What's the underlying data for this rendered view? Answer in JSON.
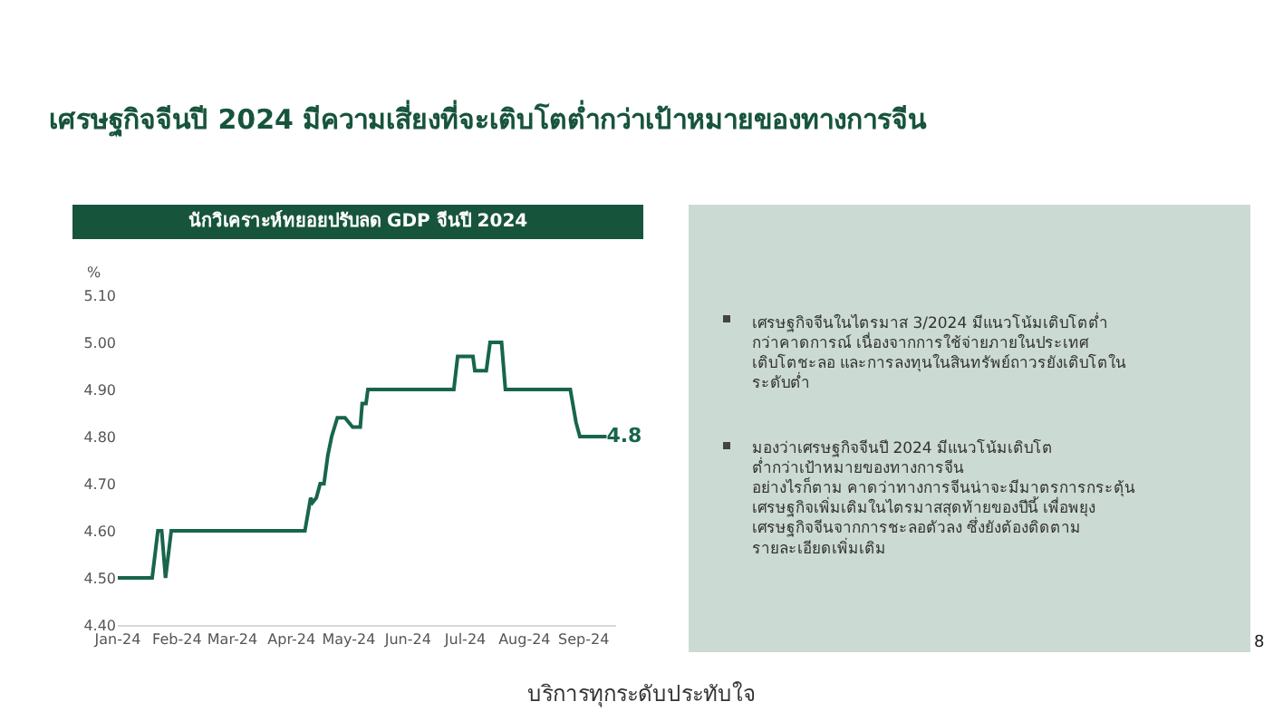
{
  "chart_data": {
    "type": "line",
    "title": "เศรษฐกิจจีนปี 2024 มีความเสี่ยงที่จะเติบโตต่ำกว่าเป้าหมายของทางการจีน",
    "subtitle": "นักวิเคราะห์ทยอยปรับลด GDP จีนปี 2024",
    "ylabel": "%",
    "x": [
      "2024-01-01",
      "2024-01-19",
      "2024-01-22",
      "2024-01-24",
      "2024-01-26",
      "2024-01-29",
      "2024-04-08",
      "2024-04-11",
      "2024-04-12",
      "2024-04-14",
      "2024-04-16",
      "2024-04-18",
      "2024-04-20",
      "2024-04-22",
      "2024-04-25",
      "2024-04-29",
      "2024-05-03",
      "2024-05-07",
      "2024-05-08",
      "2024-05-10",
      "2024-05-11",
      "2024-06-25",
      "2024-06-27",
      "2024-07-05",
      "2024-07-06",
      "2024-07-12",
      "2024-07-14",
      "2024-07-20",
      "2024-07-22",
      "2024-08-25",
      "2024-08-28",
      "2024-08-30",
      "2024-09-13"
    ],
    "series": [
      {
        "color": "#17654d",
        "values": [
          4.5,
          4.5,
          4.6,
          4.6,
          4.5,
          4.6,
          4.6,
          4.67,
          4.66,
          4.67,
          4.7,
          4.7,
          4.76,
          4.8,
          4.84,
          4.84,
          4.82,
          4.82,
          4.87,
          4.87,
          4.9,
          4.9,
          4.97,
          4.97,
          4.94,
          4.94,
          5.0,
          5.0,
          4.9,
          4.9,
          4.83,
          4.8,
          4.8
        ],
        "value_labels": [
          null,
          null,
          null,
          null,
          null,
          null,
          null,
          null,
          null,
          null,
          null,
          null,
          null,
          null,
          null,
          null,
          null,
          null,
          null,
          null,
          null,
          null,
          null,
          null,
          null,
          null,
          null,
          null,
          null,
          null,
          null,
          null,
          "4.8"
        ]
      }
    ],
    "xlim": [
      "2024-01-01",
      "2024-09-18"
    ],
    "xticks": [
      {
        "value": "2024-01-01",
        "label": "Jan-24"
      },
      {
        "value": "2024-02-01",
        "label": "Feb-24"
      },
      {
        "value": "2024-03-01",
        "label": "Mar-24"
      },
      {
        "value": "2024-04-01",
        "label": "Apr-24"
      },
      {
        "value": "2024-05-01",
        "label": "May-24"
      },
      {
        "value": "2024-06-01",
        "label": "Jun-24"
      },
      {
        "value": "2024-07-01",
        "label": "Jul-24"
      },
      {
        "value": "2024-08-01",
        "label": "Aug-24"
      },
      {
        "value": "2024-09-01",
        "label": "Sep-24"
      }
    ],
    "ylim": [
      4.4,
      5.1
    ],
    "yticks": [
      {
        "value": 4.4,
        "label": "4.40"
      },
      {
        "value": 4.5,
        "label": "4.50"
      },
      {
        "value": 4.6,
        "label": "4.60"
      },
      {
        "value": 4.7,
        "label": "4.70"
      },
      {
        "value": 4.8,
        "label": "4.80"
      },
      {
        "value": 4.9,
        "label": "4.90"
      },
      {
        "value": 5.0,
        "label": "5.00"
      },
      {
        "value": 5.1,
        "label": "5.10"
      }
    ],
    "marker": "none",
    "line_style": "solid",
    "annotations": [
      "เศรษฐกิจจีนในไตรมาส 3/2024 มีแนวโน้มเติบโตต่ำ\nกว่าคาดการณ์ เนื่องจากการใช้จ่ายภายในประเทศ\nเติบโตชะลอ และการลงทุนในสินทรัพย์ถาวรยังเติบโตใน\nระดับต่ำ",
      "มองว่าเศรษฐกิจจีนปี 2024 มีแนวโน้มเติบโต\nต่ำกว่าเป้าหมายของทางการจีน\nอย่างไรก็ตาม คาดว่าทางการจีนน่าจะมีมาตรการกระตุ้น\nเศรษฐกิจเพิ่มเติมในไตรมาสสุดท้ายของปีนี้ เพื่อพยุง\nเศรษฐกิจจีนจากการชะลอตัวลง ซึ่งยังต้องติดตาม\nรายละเอียดเพิ่มเติม",
      "8",
      "บริการทุกระดับประทับใจ"
    ]
  }
}
